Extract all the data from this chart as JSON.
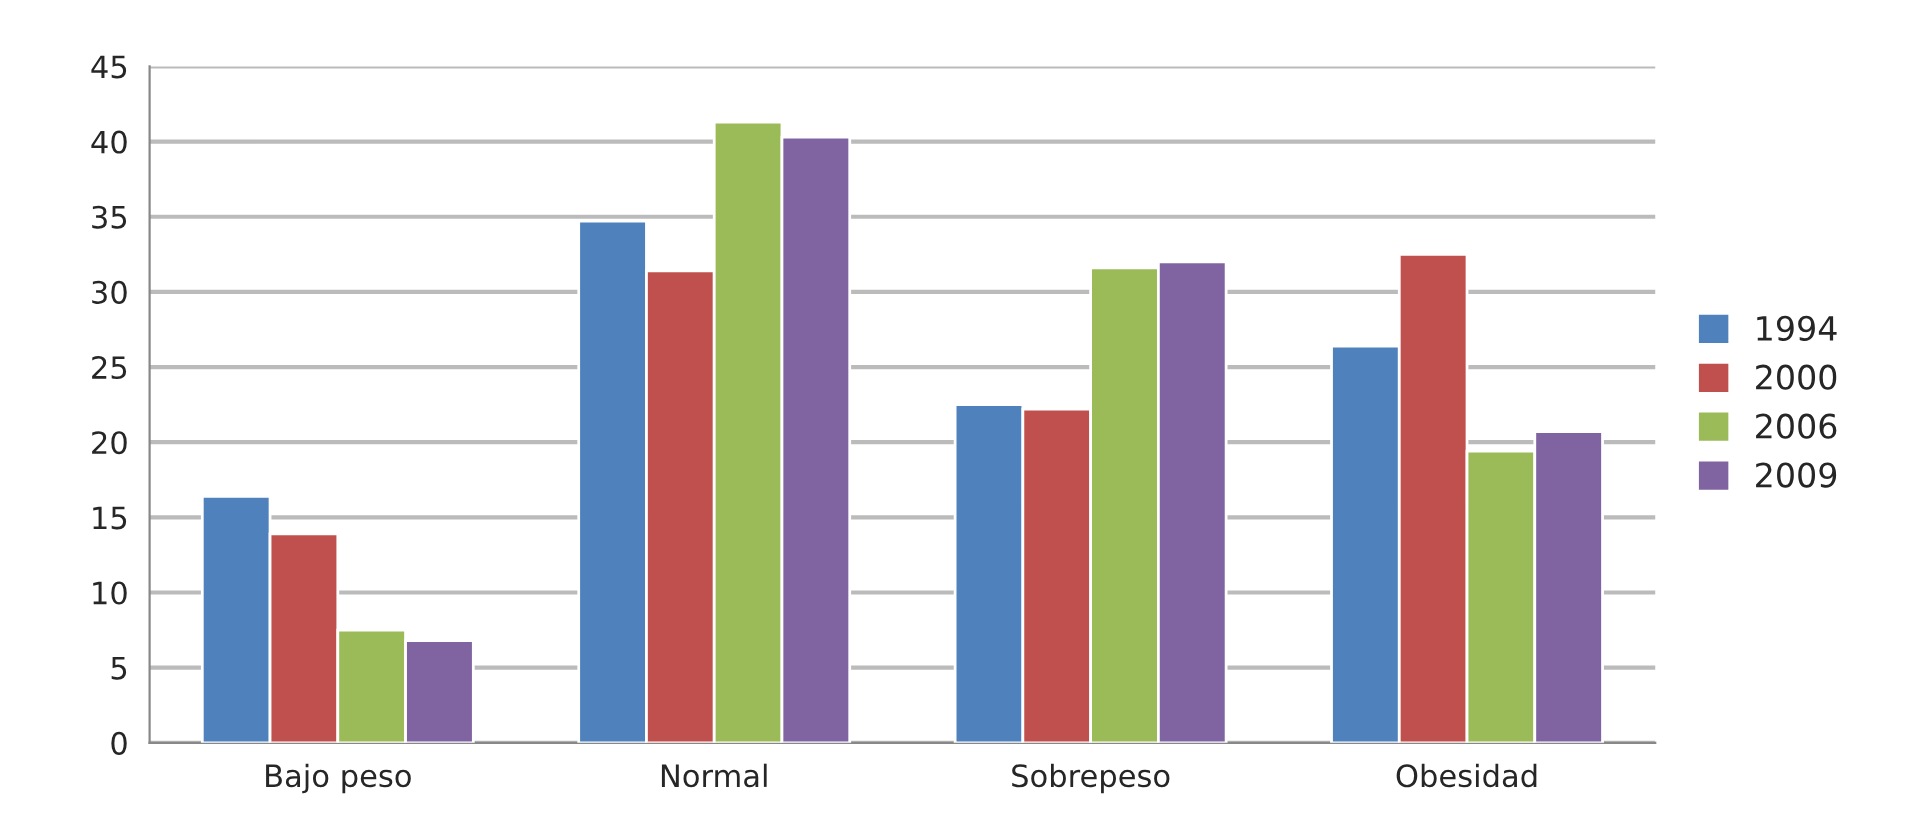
{
  "chart_data": {
    "type": "bar",
    "categories": [
      "Bajo peso",
      "Normal",
      "Sobrepeso",
      "Obesidad"
    ],
    "series": [
      {
        "name": "1994",
        "color": "#4f81bd",
        "values": [
          16.4,
          34.7,
          22.5,
          26.4
        ]
      },
      {
        "name": "2000",
        "color": "#c0504d",
        "values": [
          13.9,
          31.4,
          22.2,
          32.5
        ]
      },
      {
        "name": "2006",
        "color": "#9bbb59",
        "values": [
          7.5,
          41.3,
          31.6,
          19.4
        ]
      },
      {
        "name": "2009",
        "color": "#8064a2",
        "values": [
          6.8,
          40.3,
          32.0,
          20.7
        ]
      }
    ],
    "ylim": [
      0,
      45
    ],
    "yticks": [
      0,
      5,
      10,
      15,
      20,
      25,
      30,
      35,
      40,
      45
    ],
    "grid": "y",
    "legend": "right"
  }
}
